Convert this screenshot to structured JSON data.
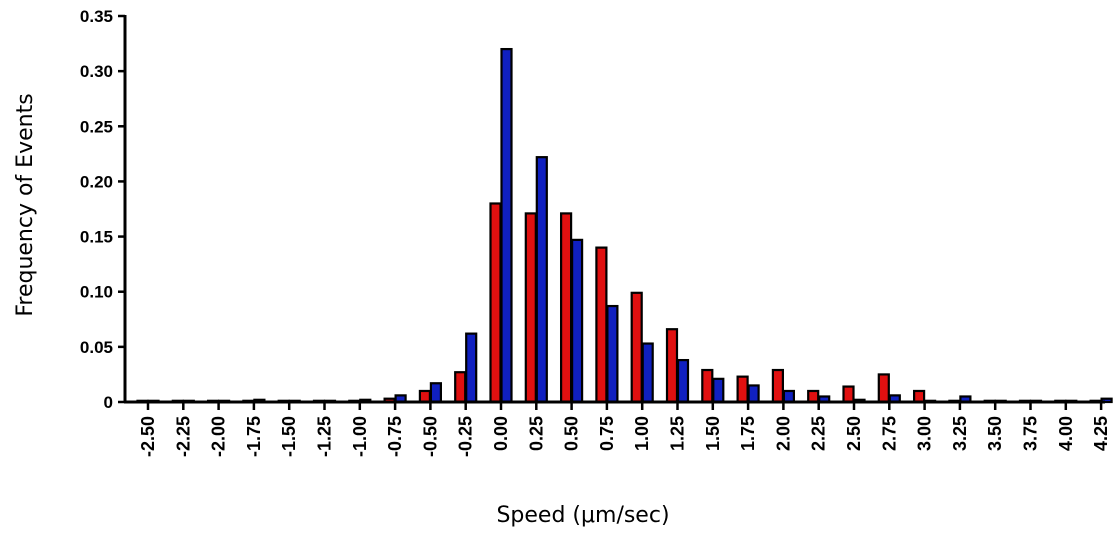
{
  "chart_data": {
    "type": "bar",
    "xlabel": "Speed (μm/sec)",
    "ylabel": "Frequency of Events",
    "ylim": [
      0,
      0.35
    ],
    "y_ticks": [
      "0",
      "0.05",
      "0.10",
      "0.15",
      "0.20",
      "0.25",
      "0.30",
      "0.35"
    ],
    "y_tick_values": [
      0,
      0.05,
      0.1,
      0.15,
      0.2,
      0.25,
      0.3,
      0.35
    ],
    "categories": [
      "-2.50",
      "-2.25",
      "-2.00",
      "-1.75",
      "-1.50",
      "-1.25",
      "-1.00",
      "-0.75",
      "-0.50",
      "-0.25",
      "0.00",
      "0.25",
      "0.50",
      "0.75",
      "1.00",
      "1.25",
      "1.50",
      "1.75",
      "2.00",
      "2.25",
      "2.50",
      "2.75",
      "3.00",
      "3.25",
      "3.50",
      "3.75",
      "4.00",
      "4.25"
    ],
    "series": [
      {
        "color": "#e01010",
        "values": [
          0,
          0,
          0,
          0,
          0,
          0,
          0,
          0.003,
          0.01,
          0.027,
          0.18,
          0.171,
          0.171,
          0.14,
          0.099,
          0.066,
          0.029,
          0.023,
          0.029,
          0.01,
          0.014,
          0.025,
          0.01,
          0,
          0,
          0,
          0,
          0
        ]
      },
      {
        "color": "#1020c0",
        "values": [
          0,
          0.001,
          0.001,
          0.002,
          0,
          0.001,
          0.002,
          0.006,
          0.017,
          0.062,
          0.32,
          0.222,
          0.147,
          0.087,
          0.053,
          0.038,
          0.021,
          0.015,
          0.01,
          0.005,
          0.002,
          0.006,
          0,
          0.005,
          0,
          0,
          0,
          0.003
        ]
      }
    ],
    "grid": false,
    "legend": "none"
  }
}
